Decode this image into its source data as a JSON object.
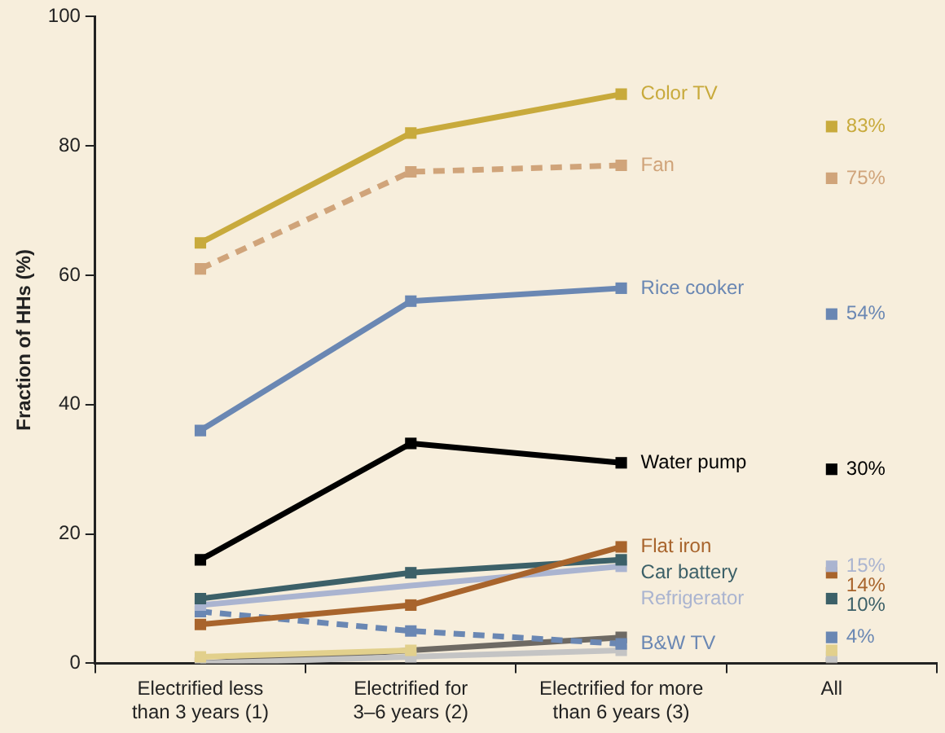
{
  "chart_data": {
    "type": "line",
    "ylabel": "Fraction of HHs (%)",
    "categories": [
      "Electrified less\nthan 3 years (1)",
      "Electrified for\n3–6 years (2)",
      "Electrified for more\nthan 6 years (3)",
      "All"
    ],
    "ylim": [
      0,
      100
    ],
    "yticks": [
      0,
      20,
      40,
      60,
      80,
      100
    ],
    "grid": false,
    "legend": false,
    "marker": "square",
    "series": [
      {
        "name": "Color TV",
        "color": "#c8aa3c",
        "values": [
          65,
          82,
          88,
          null
        ]
      },
      {
        "name": "Fan",
        "color": "#d0a47a",
        "values": [
          61,
          76,
          77,
          null
        ],
        "line_style": "dashed"
      },
      {
        "name": "Rice cooker",
        "color": "#6a87b3",
        "values": [
          36,
          56,
          58,
          null
        ]
      },
      {
        "name": "Water pump",
        "color": "#000000",
        "values": [
          16,
          34,
          31,
          null
        ]
      },
      {
        "name": "Flat iron",
        "color": "#a8642c",
        "values": [
          6,
          9,
          18,
          null
        ]
      },
      {
        "name": "Car battery",
        "color": "#3c6068",
        "values": [
          10,
          14,
          16,
          null
        ]
      },
      {
        "name": "Refrigerator",
        "color": "#aab4d0",
        "values": [
          9,
          null,
          15,
          null
        ]
      },
      {
        "name": "B&W TV",
        "color": "#6a87b3",
        "values": [
          8,
          5,
          3,
          null
        ],
        "line_style": "dashed"
      },
      {
        "color": "#e2d08c",
        "values": [
          1,
          2,
          null,
          null
        ]
      },
      {
        "color": "#c4c4c4",
        "values": [
          0,
          1,
          2,
          null
        ]
      },
      {
        "color": "#6e6a64",
        "values": [
          0,
          null,
          4,
          null
        ]
      },
      {
        "type": "scatter",
        "color": "#c8aa3c",
        "x": [
          "All"
        ],
        "values": [
          83
        ],
        "value_labels": [
          "83%"
        ]
      },
      {
        "type": "scatter",
        "color": "#d0a47a",
        "x": [
          "All"
        ],
        "values": [
          75
        ],
        "value_labels": [
          "75%"
        ]
      },
      {
        "type": "scatter",
        "color": "#6a87b3",
        "x": [
          "All"
        ],
        "values": [
          54
        ],
        "value_labels": [
          "54%"
        ]
      },
      {
        "type": "scatter",
        "color": "#000000",
        "x": [
          "All"
        ],
        "values": [
          30
        ],
        "value_labels": [
          "30%"
        ]
      },
      {
        "type": "scatter",
        "color": "#aab4d0",
        "x": [
          "All"
        ],
        "values": [
          15
        ],
        "value_labels": [
          "15%"
        ]
      },
      {
        "type": "scatter",
        "color": "#a8642c",
        "x": [
          "All"
        ],
        "values": [
          14
        ],
        "value_labels": [
          "14%"
        ]
      },
      {
        "type": "scatter",
        "color": "#3c6068",
        "x": [
          "All"
        ],
        "values": [
          10
        ],
        "value_labels": [
          "10%"
        ]
      },
      {
        "type": "scatter",
        "color": "#6a87b3",
        "x": [
          "All"
        ],
        "values": [
          4
        ],
        "value_labels": [
          "4%"
        ]
      },
      {
        "type": "scatter",
        "color": "#e2d08c",
        "x": [
          "All"
        ],
        "values": [
          2
        ]
      },
      {
        "type": "scatter",
        "color": "#c4c4c4",
        "x": [
          "All"
        ],
        "values": [
          1
        ]
      },
      {
        "type": "scatter",
        "color": "#6e6a64",
        "x": [
          "All"
        ],
        "values": [
          0
        ]
      }
    ]
  }
}
